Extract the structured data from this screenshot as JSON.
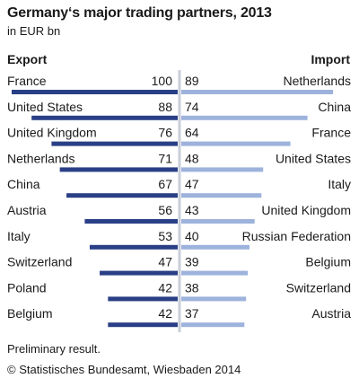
{
  "chart_data": {
    "type": "bar",
    "title": "Germany‘s major trading partners, 2013",
    "subtitle": "in EUR bn",
    "left_header": "Export",
    "right_header": "Import",
    "export": {
      "categories": [
        "France",
        "United States",
        "United Kingdom",
        "Netherlands",
        "China",
        "Austria",
        "Italy",
        "Switzerland",
        "Poland",
        "Belgium"
      ],
      "values": [
        100,
        88,
        76,
        71,
        67,
        56,
        53,
        47,
        42,
        42
      ],
      "color": "#2a3f86"
    },
    "import": {
      "categories": [
        "Netherlands",
        "China",
        "France",
        "United States",
        "Italy",
        "United Kingdom",
        "Russian Federation",
        "Belgium",
        "Switzerland",
        "Austria"
      ],
      "values": [
        89,
        74,
        64,
        48,
        47,
        43,
        40,
        39,
        38,
        37
      ],
      "color": "#9db3dc"
    },
    "xlim": [
      0,
      100
    ],
    "grid": false,
    "footnote": "Preliminary result.",
    "source": "© Statistisches Bundesamt, Wiesbaden 2014"
  }
}
